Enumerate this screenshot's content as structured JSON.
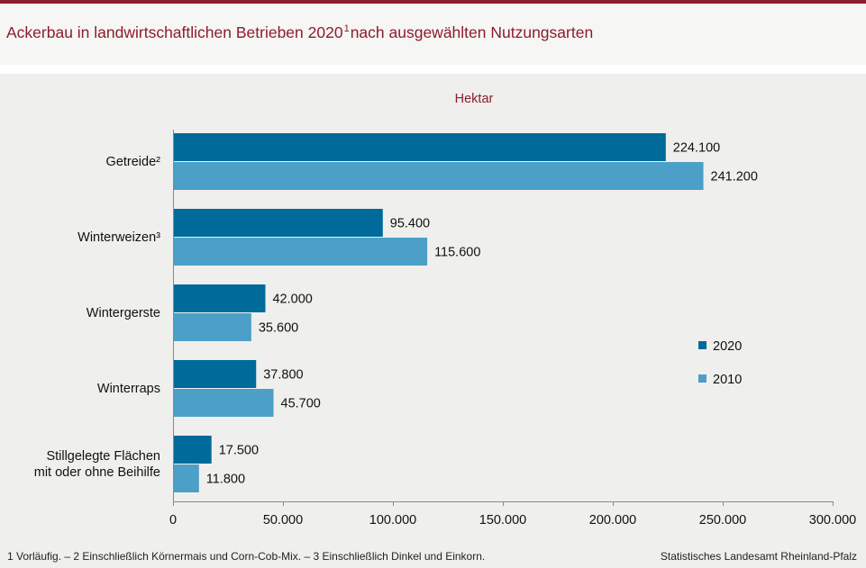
{
  "header": {
    "title_main": "Ackerbau in landwirtschaftlichen Betrieben 2020",
    "title_sup": "1",
    "title_rest": "nach ausgewählten Nutzungsarten"
  },
  "chart_data": {
    "type": "bar",
    "orientation": "horizontal",
    "unit_label": "Hektar",
    "categories": [
      [
        "Getreide²"
      ],
      [
        "Winterweizen³"
      ],
      [
        "Wintergerste"
      ],
      [
        "Winterraps"
      ],
      [
        "Stillgelegte Flächen",
        "mit oder ohne Beihilfe"
      ]
    ],
    "series": [
      {
        "name": "2020",
        "color": "#006a9a",
        "values": [
          224100,
          95400,
          42000,
          37800,
          17500
        ],
        "labels": [
          "224.100",
          "95.400",
          "42.000",
          "37.800",
          "17.500"
        ]
      },
      {
        "name": "2010",
        "color": "#4c9fc6",
        "values": [
          241200,
          115600,
          35600,
          45700,
          11800
        ],
        "labels": [
          "241.200",
          "115.600",
          "35.600",
          "45.700",
          "11.800"
        ]
      }
    ],
    "xlim": [
      0,
      300000
    ],
    "xticks": [
      {
        "value": 0,
        "label": "0"
      },
      {
        "value": 50000,
        "label": "50.000"
      },
      {
        "value": 100000,
        "label": "100.000"
      },
      {
        "value": 150000,
        "label": "150.000"
      },
      {
        "value": 200000,
        "label": "200.000"
      },
      {
        "value": 250000,
        "label": "250.000"
      },
      {
        "value": 300000,
        "label": "300.000"
      }
    ],
    "grid": false,
    "legend_position": "right"
  },
  "footer": {
    "footnote": "1 Vorläufig.  – 2 Einschließlich Körnermais  und Corn-Cob-Mix.  – 3 Einschließlich Dinkel und Einkorn.",
    "source": "Statistisches Landesamt Rheinland-Pfalz"
  }
}
